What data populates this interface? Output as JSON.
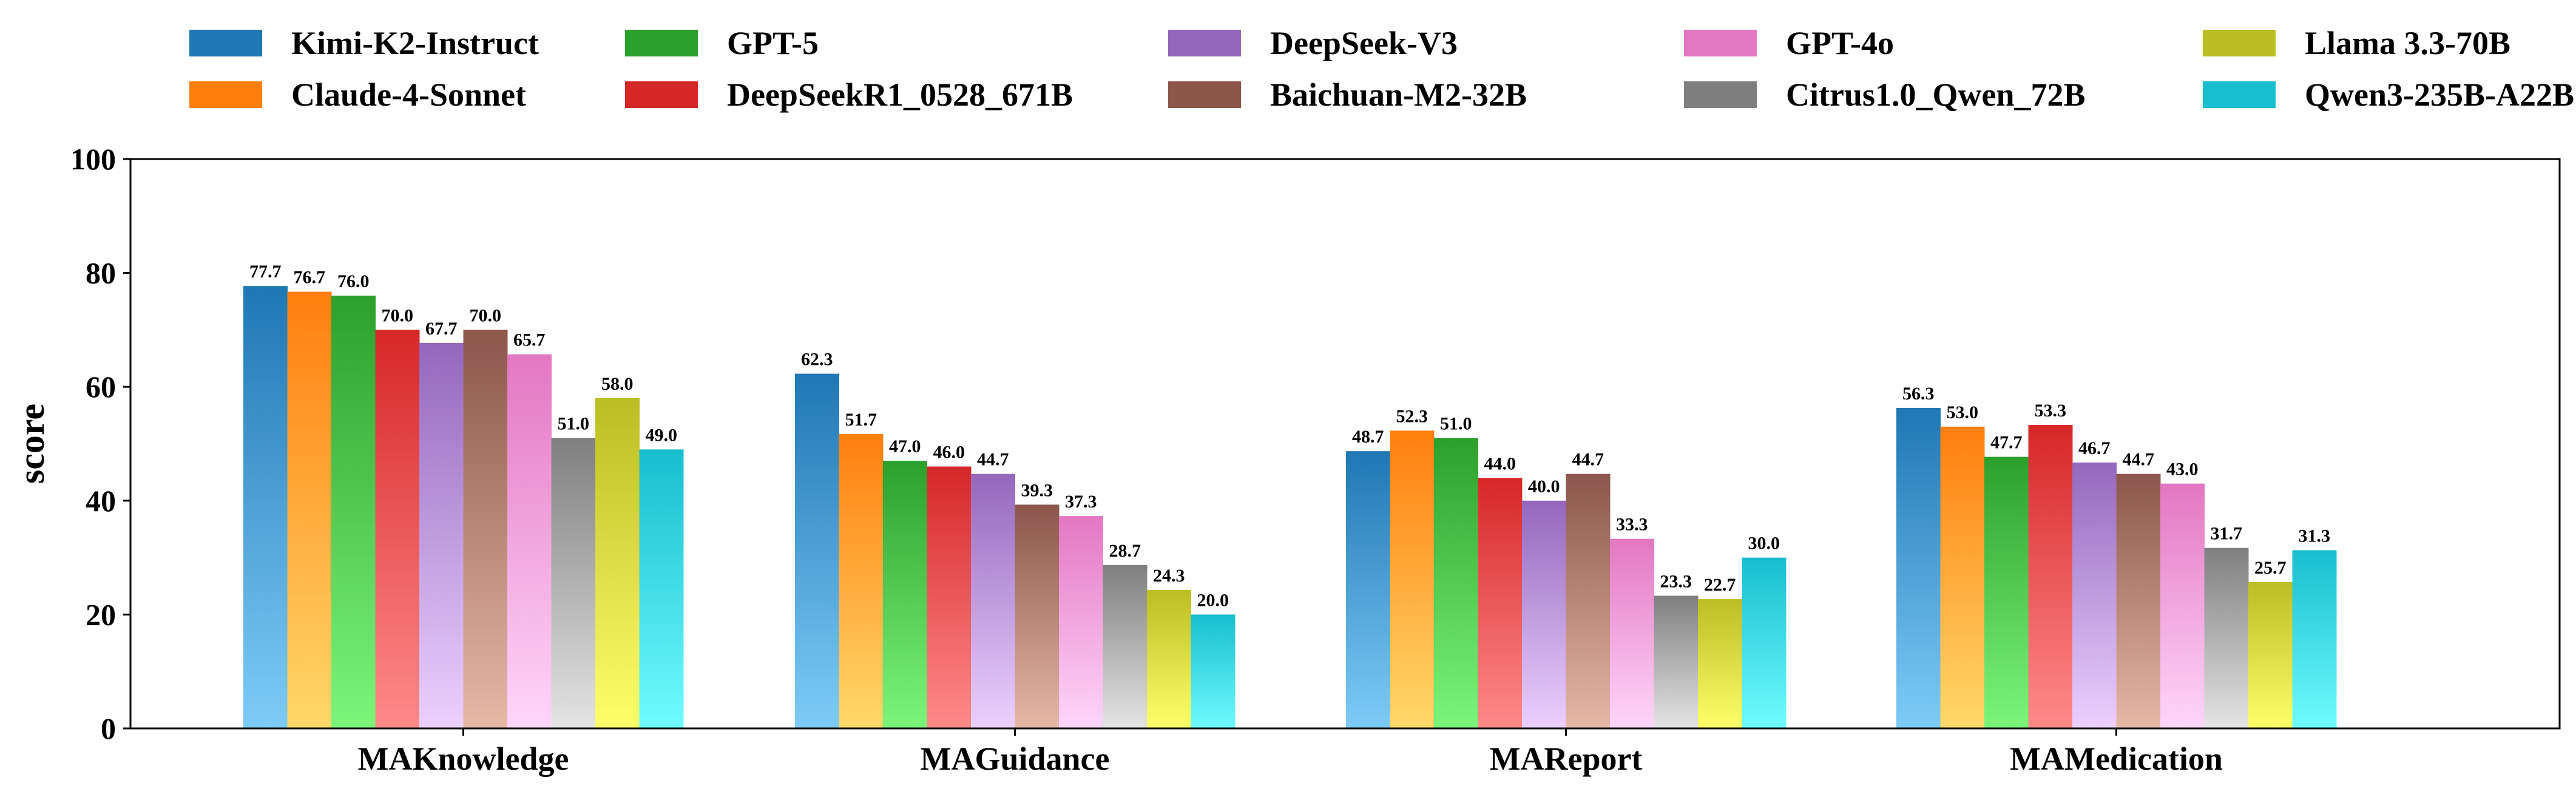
{
  "chart_data": {
    "type": "bar",
    "ylabel": "score",
    "xlabel": "",
    "ylim": [
      0,
      100
    ],
    "yticks": [
      0,
      20,
      40,
      60,
      80,
      100
    ],
    "grid": false,
    "legend_placement": "top",
    "categories": [
      "MAKnowledge",
      "MAGuidance",
      "MAReport",
      "MAMedication"
    ],
    "series": [
      {
        "name": "Kimi-K2-Instruct",
        "color": "#1f77b4",
        "color_light": "#7ecbf7",
        "values": [
          77.7,
          62.3,
          48.7,
          56.3
        ]
      },
      {
        "name": "Claude-4-Sonnet",
        "color": "#ff7f0e",
        "color_light": "#ffd86a",
        "values": [
          76.7,
          51.7,
          52.3,
          53.0
        ]
      },
      {
        "name": "GPT-5",
        "color": "#2ca02c",
        "color_light": "#7df57a",
        "values": [
          76.0,
          47.0,
          51.0,
          47.7
        ]
      },
      {
        "name": "DeepSeekR1_0528_671B",
        "color": "#d62728",
        "color_light": "#ff8a8a",
        "values": [
          70.0,
          46.0,
          44.0,
          53.3
        ]
      },
      {
        "name": "DeepSeek-V3",
        "color": "#9467bd",
        "color_light": "#ecd0ff",
        "values": [
          67.7,
          44.7,
          40.0,
          46.7
        ]
      },
      {
        "name": "Baichuan-M2-32B",
        "color": "#8c564b",
        "color_light": "#e6b8a6",
        "values": [
          70.0,
          39.3,
          44.7,
          44.7
        ]
      },
      {
        "name": "GPT-4o",
        "color": "#e377c2",
        "color_light": "#ffd6fb",
        "values": [
          65.7,
          37.3,
          33.3,
          43.0
        ]
      },
      {
        "name": "Citrus1.0_Qwen_72B",
        "color": "#7f7f7f",
        "color_light": "#e4e4e4",
        "values": [
          51.0,
          28.7,
          23.3,
          31.7
        ]
      },
      {
        "name": "Llama 3.3-70B",
        "color": "#bcbd22",
        "color_light": "#ffff6a",
        "values": [
          58.0,
          24.3,
          22.7,
          25.7
        ]
      },
      {
        "name": "Qwen3-235B-A22B",
        "color": "#17becf",
        "color_light": "#6ffcff",
        "values": [
          49.0,
          20.0,
          30.0,
          31.3
        ]
      }
    ]
  }
}
